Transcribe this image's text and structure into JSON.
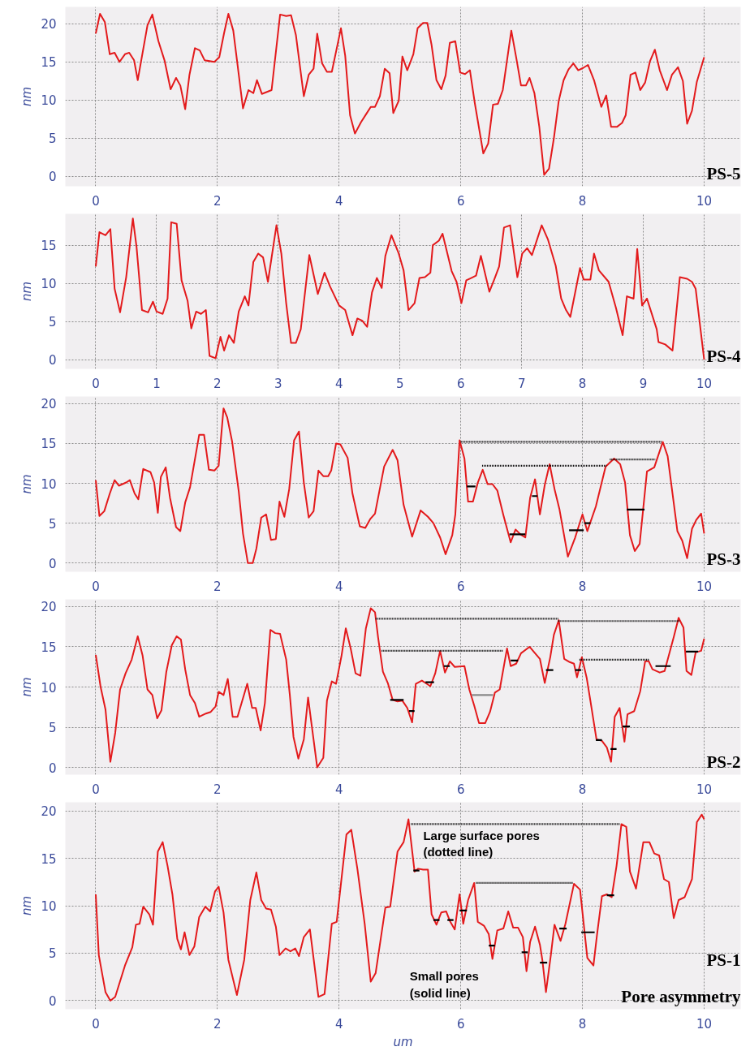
{
  "chart_data": [
    {
      "type": "line",
      "ylabel": "nm",
      "xlim": [
        -0.5,
        10.6
      ],
      "xticks": [
        0,
        2,
        4,
        6,
        8,
        10
      ],
      "ylim": [
        -1.3,
        22.2
      ],
      "yticks": [
        0,
        5,
        10,
        15,
        20
      ],
      "grid": true,
      "marker": "none",
      "annotations": [
        "PS-5"
      ],
      "series": [
        {
          "color": "#e31a1c",
          "line_style": "solid",
          "x": [
            0,
            0.07,
            0.15,
            0.23,
            0.31,
            0.39,
            0.48,
            0.55,
            0.63,
            0.69,
            0.85,
            0.93,
            1.03,
            1.13,
            1.23,
            1.32,
            1.39,
            1.47,
            1.54,
            1.63,
            1.71,
            1.79,
            1.95,
            2.03,
            2.11,
            2.18,
            2.26,
            2.42,
            2.51,
            2.59,
            2.65,
            2.73,
            2.89,
            3.03,
            3.13,
            3.21,
            3.29,
            3.42,
            3.5,
            3.58,
            3.64,
            3.72,
            3.8,
            3.88,
            4.03,
            4.1,
            4.18,
            4.26,
            4.36,
            4.44,
            4.52,
            4.59,
            4.67,
            4.75,
            4.83,
            4.89,
            4.98,
            5.04,
            5.12,
            5.22,
            5.29,
            5.38,
            5.45,
            5.52,
            5.6,
            5.68,
            5.75,
            5.82,
            5.91,
            5.99,
            6.07,
            6.15,
            6.23,
            6.37,
            6.45,
            6.53,
            6.61,
            6.69,
            6.83,
            6.91,
            6.99,
            7.07,
            7.13,
            7.21,
            7.29,
            7.37,
            7.45,
            7.53,
            7.61,
            7.69,
            7.77,
            7.85,
            7.93,
            8.01,
            8.09,
            8.19,
            8.31,
            8.39,
            8.47,
            8.57,
            8.65,
            8.71,
            8.79,
            8.87,
            8.95,
            9.03,
            9.11,
            9.19,
            9.27,
            9.39,
            9.47,
            9.57,
            9.65,
            9.72,
            9.8,
            9.88,
            10
          ],
          "values": [
            18.7,
            21.3,
            20.2,
            16,
            16.2,
            15,
            16,
            16.2,
            15.2,
            12.6,
            19.8,
            21.2,
            17.7,
            15.2,
            11.4,
            12.9,
            11.9,
            8.8,
            13.3,
            16.8,
            16.5,
            15.2,
            15,
            15.6,
            18.8,
            21.3,
            19.1,
            8.9,
            11.3,
            10.9,
            12.6,
            10.8,
            11.3,
            21.2,
            21,
            21.1,
            18.5,
            10.5,
            13.3,
            14.1,
            18.7,
            14.8,
            13.7,
            13.7,
            19.4,
            15.8,
            8,
            5.6,
            7.1,
            8.1,
            9.1,
            9.1,
            10.5,
            14.1,
            13.5,
            8.3,
            9.9,
            15.7,
            13.9,
            16,
            19.4,
            20.1,
            20.1,
            17.2,
            12.6,
            11.4,
            13.2,
            17.5,
            17.7,
            13.6,
            13.4,
            13.9,
            9.6,
            3,
            4.3,
            9.4,
            9.5,
            11.3,
            19.1,
            15.6,
            11.9,
            11.9,
            12.9,
            10.9,
            6.5,
            0.2,
            1,
            5,
            9.9,
            12.6,
            14,
            14.8,
            13.9,
            14.2,
            14.6,
            12.6,
            9.1,
            10.6,
            6.5,
            6.5,
            7,
            8,
            13.3,
            13.6,
            11.3,
            12.3,
            15.1,
            16.6,
            13.9,
            11.3,
            13.3,
            14.3,
            12.5,
            6.9,
            8.6,
            12.4,
            15.6
          ]
        }
      ]
    },
    {
      "type": "line",
      "ylabel": "nm",
      "xlim": [
        -0.5,
        10.6
      ],
      "xticks": [
        0,
        1,
        2,
        3,
        4,
        5,
        6,
        7,
        8,
        9,
        10
      ],
      "ylim": [
        -1.2,
        19.1
      ],
      "yticks": [
        0,
        5,
        10,
        15
      ],
      "grid": true,
      "marker": "none",
      "annotations": [
        "PS-4"
      ],
      "series": [
        {
          "color": "#e31a1c",
          "line_style": "solid",
          "x": [
            0,
            0.06,
            0.16,
            0.24,
            0.31,
            0.4,
            0.5,
            0.61,
            0.67,
            0.76,
            0.86,
            0.94,
            1,
            1.1,
            1.18,
            1.24,
            1.33,
            1.41,
            1.51,
            1.57,
            1.65,
            1.73,
            1.81,
            1.87,
            1.97,
            2.05,
            2.11,
            2.19,
            2.27,
            2.35,
            2.45,
            2.51,
            2.59,
            2.67,
            2.75,
            2.83,
            2.97,
            3.05,
            3.13,
            3.21,
            3.29,
            3.37,
            3.51,
            3.65,
            3.76,
            3.85,
            4,
            4.1,
            4.22,
            4.3,
            4.38,
            4.46,
            4.54,
            4.62,
            4.7,
            4.76,
            4.86,
            4.98,
            5.06,
            5.14,
            5.24,
            5.32,
            5.41,
            5.5,
            5.54,
            5.64,
            5.7,
            5.85,
            5.93,
            6.01,
            6.09,
            6.17,
            6.25,
            6.33,
            6.47,
            6.55,
            6.63,
            6.71,
            6.81,
            6.93,
            7.01,
            7.09,
            7.17,
            7.33,
            7.43,
            7.56,
            7.65,
            7.73,
            7.8,
            7.96,
            8.02,
            8.13,
            8.19,
            8.27,
            8.43,
            8.55,
            8.66,
            8.73,
            8.84,
            8.9,
            8.98,
            9.06,
            9.22,
            9.25,
            9.36,
            9.48,
            9.6,
            9.72,
            9.8,
            9.86,
            10
          ],
          "values": [
            12.2,
            16.7,
            16.3,
            17.1,
            9.3,
            6.2,
            10.8,
            18.5,
            14.8,
            6.5,
            6.2,
            7.6,
            6.3,
            6,
            8,
            18,
            17.8,
            10.4,
            7.7,
            4.1,
            6.3,
            6,
            6.5,
            0.5,
            0.2,
            3,
            1.2,
            3.2,
            2.2,
            6.3,
            8.3,
            7.1,
            12.8,
            13.9,
            13.4,
            10.2,
            17.6,
            13.9,
            7.4,
            2.2,
            2.2,
            4,
            13.7,
            8.6,
            11.4,
            9.6,
            7.1,
            6.5,
            3.2,
            5.4,
            5.1,
            4.3,
            8.8,
            10.7,
            9.4,
            13.6,
            16.3,
            13.9,
            11.7,
            6.5,
            7.4,
            10.7,
            10.8,
            11.4,
            15,
            15.6,
            16.5,
            11.6,
            10.2,
            7.4,
            10.4,
            10.7,
            11,
            13.6,
            8.9,
            10.5,
            12.2,
            17.3,
            17.6,
            10.8,
            13.9,
            14.6,
            13.7,
            17.6,
            15.8,
            12.3,
            8,
            6.5,
            5.6,
            12,
            10.5,
            10.5,
            13.9,
            11.7,
            10.2,
            6.8,
            3.2,
            8.3,
            8,
            14.5,
            7.1,
            8,
            4,
            2.3,
            2,
            1.2,
            10.8,
            10.6,
            10.2,
            9.3,
            0
          ]
        }
      ]
    },
    {
      "type": "line",
      "ylabel": "nm",
      "xlim": [
        -0.5,
        10.6
      ],
      "xticks": [
        0,
        2,
        4,
        6,
        8,
        10
      ],
      "ylim": [
        -1.1,
        20.9
      ],
      "yticks": [
        0,
        5,
        10,
        15,
        20
      ],
      "grid": true,
      "marker": "none",
      "annotations": [
        "PS-3"
      ],
      "series": [
        {
          "color": "#e31a1c",
          "line_style": "solid",
          "x": [
            0,
            0.06,
            0.14,
            0.23,
            0.31,
            0.38,
            0.5,
            0.56,
            0.64,
            0.7,
            0.78,
            0.9,
            0.96,
            1.02,
            1.07,
            1.15,
            1.22,
            1.32,
            1.39,
            1.47,
            1.55,
            1.7,
            1.78,
            1.86,
            1.95,
            2.02,
            2.1,
            2.16,
            2.24,
            2.35,
            2.42,
            2.5,
            2.58,
            2.64,
            2.72,
            2.8,
            2.88,
            2.96,
            3.02,
            3.1,
            3.18,
            3.26,
            3.34,
            3.42,
            3.5,
            3.58,
            3.66,
            3.74,
            3.82,
            3.87,
            3.95,
            4.02,
            4.14,
            4.22,
            4.34,
            4.43,
            4.51,
            4.59,
            4.74,
            4.88,
            4.96,
            5.06,
            5.2,
            5.34,
            5.46,
            5.55,
            5.66,
            5.75,
            5.86,
            5.91,
            5.98,
            6.06,
            6.12,
            6.2,
            6.28,
            6.36,
            6.44,
            6.52,
            6.6,
            6.7,
            6.82,
            6.9,
            6.98,
            7.06,
            7.14,
            7.22,
            7.3,
            7.38,
            7.46,
            7.54,
            7.62,
            7.76,
            7.88,
            8,
            8.08,
            8.22,
            8.38,
            8.52,
            8.62,
            8.7,
            8.78,
            8.86,
            8.94,
            9.06,
            9.18,
            9.32,
            9.4,
            9.56,
            9.64,
            9.72,
            9.8,
            9.87,
            9.95,
            10
          ],
          "values": [
            10.4,
            5.9,
            6.5,
            8.7,
            10.4,
            9.7,
            10.1,
            10.4,
            8.7,
            8,
            11.8,
            11.4,
            10.1,
            6.3,
            10.8,
            12,
            8.2,
            4.5,
            4,
            7.6,
            9.5,
            16.1,
            16.1,
            11.7,
            11.6,
            12.2,
            19.4,
            18.3,
            15.3,
            9,
            3.7,
            0,
            0,
            1.8,
            5.7,
            6.1,
            2.9,
            3,
            7.7,
            5.8,
            9.3,
            15.4,
            16.5,
            10.1,
            5.7,
            6.5,
            11.6,
            10.9,
            10.9,
            11.6,
            15,
            14.9,
            13.2,
            8.7,
            4.6,
            4.4,
            5.5,
            6.2,
            12.1,
            14.2,
            12.9,
            7.3,
            3.3,
            6.6,
            5.8,
            5,
            3.2,
            1.1,
            3.5,
            6.1,
            15.4,
            13.1,
            7.7,
            7.7,
            10.1,
            11.7,
            9.9,
            9.9,
            9.1,
            6,
            2.6,
            4.2,
            3.6,
            3.2,
            8.2,
            10.5,
            6.1,
            9.8,
            12.4,
            9.3,
            6.8,
            0.8,
            3.2,
            6.1,
            4,
            7.1,
            12.1,
            13.1,
            12.4,
            10.1,
            3.5,
            1.5,
            2.4,
            11.5,
            12,
            15.2,
            13.4,
            4,
            2.8,
            0.6,
            4.3,
            5.4,
            6.2,
            3.7
          ]
        },
        {
          "color": "#000000",
          "line_style": "dotted",
          "x": [
            6.0,
            9.3
          ],
          "values": [
            15.2,
            15.2
          ]
        },
        {
          "color": "#000000",
          "line_style": "dotted",
          "x": [
            6.35,
            8.4
          ],
          "values": [
            12.2,
            12.2
          ]
        },
        {
          "color": "#000000",
          "line_style": "dotted",
          "x": [
            8.45,
            9.2
          ],
          "values": [
            13,
            13
          ]
        },
        {
          "color": "#000000",
          "line_style": "solid",
          "x": [
            6.1,
            6.24
          ],
          "values": [
            9.6,
            9.6
          ]
        },
        {
          "color": "#000000",
          "line_style": "solid",
          "x": [
            6.8,
            7.06
          ],
          "values": [
            3.6,
            3.6
          ]
        },
        {
          "color": "#000000",
          "line_style": "solid",
          "x": [
            7.17,
            7.26
          ],
          "values": [
            8.4,
            8.4
          ]
        },
        {
          "color": "#000000",
          "line_style": "solid",
          "x": [
            7.78,
            8.02
          ],
          "values": [
            4.1,
            4.1
          ]
        },
        {
          "color": "#000000",
          "line_style": "solid",
          "x": [
            8.03,
            8.13
          ],
          "values": [
            5,
            5
          ]
        },
        {
          "color": "#000000",
          "line_style": "solid",
          "x": [
            8.73,
            9.02
          ],
          "values": [
            6.7,
            6.7
          ]
        }
      ]
    },
    {
      "type": "line",
      "ylabel": "nm",
      "xlim": [
        -0.5,
        10.6
      ],
      "xticks": [
        0,
        2,
        4,
        6,
        8,
        10
      ],
      "ylim": [
        -0.9,
        20.9
      ],
      "yticks": [
        0,
        5,
        10,
        15,
        20
      ],
      "grid": true,
      "marker": "none",
      "annotations": [
        "PS-2"
      ],
      "series": [
        {
          "color": "#e31a1c",
          "line_style": "solid",
          "x": [
            0,
            0.08,
            0.16,
            0.24,
            0.32,
            0.4,
            0.49,
            0.59,
            0.69,
            0.77,
            0.85,
            0.93,
            1.01,
            1.08,
            1.16,
            1.25,
            1.33,
            1.4,
            1.47,
            1.55,
            1.63,
            1.7,
            1.81,
            1.89,
            1.97,
            2.02,
            2.1,
            2.17,
            2.25,
            2.33,
            2.49,
            2.57,
            2.63,
            2.71,
            2.78,
            2.87,
            2.95,
            3.03,
            3.13,
            3.19,
            3.25,
            3.33,
            3.42,
            3.49,
            3.55,
            3.64,
            3.74,
            3.8,
            3.88,
            3.95,
            4.04,
            4.11,
            4.19,
            4.27,
            4.35,
            4.44,
            4.52,
            4.59,
            4.64,
            4.72,
            4.8,
            4.88,
            4.96,
            5.04,
            5.12,
            5.2,
            5.26,
            5.36,
            5.44,
            5.5,
            5.58,
            5.66,
            5.74,
            5.82,
            5.9,
            6.06,
            6.14,
            6.22,
            6.3,
            6.4,
            6.48,
            6.56,
            6.64,
            6.76,
            6.82,
            6.91,
            6.99,
            7.13,
            7.22,
            7.3,
            7.38,
            7.47,
            7.53,
            7.61,
            7.7,
            7.79,
            7.86,
            7.91,
            7.99,
            8.07,
            8.13,
            8.23,
            8.32,
            8.4,
            8.47,
            8.53,
            8.61,
            8.69,
            8.74,
            8.85,
            8.95,
            9.03,
            9.09,
            9.15,
            9.27,
            9.35,
            9.5,
            9.58,
            9.66,
            9.71,
            9.79,
            9.86,
            9.95,
            10
          ],
          "values": [
            14,
            10,
            7.2,
            0.7,
            4.3,
            9.7,
            11.7,
            13.4,
            16.3,
            13.9,
            9.7,
            9,
            6.1,
            7.1,
            11.9,
            15.2,
            16.3,
            15.9,
            12.2,
            9,
            8,
            6.3,
            6.7,
            6.9,
            7.6,
            9.4,
            9,
            11,
            6.3,
            6.3,
            10.4,
            7.4,
            7.4,
            4.6,
            8,
            17.1,
            16.7,
            16.6,
            13.4,
            9,
            3.8,
            1.1,
            3.5,
            8.7,
            5.2,
            0,
            1.2,
            8.3,
            10.7,
            10.4,
            13.9,
            17.3,
            14.8,
            11.7,
            11.4,
            17.3,
            19.8,
            19.3,
            16.2,
            11.9,
            10.5,
            8.4,
            8.2,
            8.3,
            7.4,
            5.6,
            10.4,
            10.8,
            10.4,
            10.1,
            11.7,
            14.5,
            11.8,
            13.2,
            12.5,
            12.6,
            9.7,
            7.7,
            5.5,
            5.5,
            6.9,
            9.3,
            9.7,
            14.8,
            12.6,
            12.9,
            14.2,
            15,
            14.2,
            13.5,
            10.5,
            13.7,
            16.5,
            18.3,
            13.5,
            13.1,
            12.9,
            11.2,
            13.7,
            11.1,
            8.3,
            3.5,
            3.3,
            2.5,
            0.7,
            6.3,
            7.4,
            3.2,
            6.6,
            7,
            9.5,
            13.2,
            13.2,
            12.2,
            11.8,
            12,
            16.2,
            18.6,
            17.4,
            12,
            11.5,
            14.3,
            14.5,
            16
          ]
        },
        {
          "color": "#000000",
          "line_style": "dotted",
          "x": [
            4.6,
            7.6
          ],
          "values": [
            18.5,
            18.5
          ]
        },
        {
          "color": "#000000",
          "line_style": "dotted",
          "x": [
            7.6,
            9.6
          ],
          "values": [
            18.2,
            18.2
          ]
        },
        {
          "color": "#000000",
          "line_style": "dotted",
          "x": [
            4.7,
            6.7
          ],
          "values": [
            14.5,
            14.5
          ]
        },
        {
          "color": "#000000",
          "line_style": "dotted",
          "x": [
            7.95,
            9.1
          ],
          "values": [
            13.4,
            13.4
          ]
        },
        {
          "color": "#000000",
          "line_style": "solid",
          "x": [
            4.84,
            5.06
          ],
          "values": [
            8.4,
            8.4
          ]
        },
        {
          "color": "#000000",
          "line_style": "solid",
          "x": [
            5.15,
            5.24
          ],
          "values": [
            7,
            7
          ]
        },
        {
          "color": "#000000",
          "line_style": "solid",
          "x": [
            5.42,
            5.56
          ],
          "values": [
            10.6,
            10.6
          ]
        },
        {
          "color": "#000000",
          "line_style": "solid",
          "x": [
            5.72,
            5.82
          ],
          "values": [
            12.6,
            12.6
          ]
        },
        {
          "color": "#888888",
          "line_style": "solid",
          "x": [
            6.18,
            6.53
          ],
          "values": [
            9,
            9
          ]
        },
        {
          "color": "#000000",
          "line_style": "solid",
          "x": [
            6.82,
            6.94
          ],
          "values": [
            13.3,
            13.3
          ]
        },
        {
          "color": "#000000",
          "line_style": "solid",
          "x": [
            7.4,
            7.52
          ],
          "values": [
            12.1,
            12.1
          ]
        },
        {
          "color": "#000000",
          "line_style": "solid",
          "x": [
            7.88,
            7.98
          ],
          "values": [
            12.1,
            12.1
          ]
        },
        {
          "color": "#000000",
          "line_style": "solid",
          "x": [
            8.22,
            8.32
          ],
          "values": [
            3.4,
            3.4
          ]
        },
        {
          "color": "#000000",
          "line_style": "solid",
          "x": [
            8.46,
            8.56
          ],
          "values": [
            2.3,
            2.3
          ]
        },
        {
          "color": "#000000",
          "line_style": "solid",
          "x": [
            8.66,
            8.78
          ],
          "values": [
            5.1,
            5.1
          ]
        },
        {
          "color": "#000000",
          "line_style": "solid",
          "x": [
            9.2,
            9.45
          ],
          "values": [
            12.6,
            12.6
          ]
        },
        {
          "color": "#000000",
          "line_style": "solid",
          "x": [
            9.7,
            9.9
          ],
          "values": [
            14.4,
            14.4
          ]
        }
      ]
    },
    {
      "type": "line",
      "ylabel": "nm",
      "xlabel": "um",
      "xlim": [
        -0.5,
        10.6
      ],
      "xticks": [
        0,
        2,
        4,
        6,
        8,
        10
      ],
      "ylim": [
        -0.9,
        20.9
      ],
      "yticks": [
        0,
        5,
        10,
        15,
        20
      ],
      "grid": true,
      "marker": "none",
      "annotations": [
        "PS-1",
        "Pore asymmetry",
        "Large surface pores\n(dotted line)",
        "Small pores\n(solid line)"
      ],
      "series": [
        {
          "color": "#e31a1c",
          "line_style": "solid",
          "x": [
            0,
            0.05,
            0.16,
            0.24,
            0.32,
            0.48,
            0.6,
            0.66,
            0.72,
            0.78,
            0.88,
            0.94,
            1.02,
            1.1,
            1.18,
            1.26,
            1.34,
            1.4,
            1.46,
            1.54,
            1.62,
            1.7,
            1.8,
            1.88,
            1.96,
            2.02,
            2.1,
            2.18,
            2.32,
            2.44,
            2.54,
            2.64,
            2.72,
            2.8,
            2.88,
            2.96,
            3.02,
            3.12,
            3.2,
            3.28,
            3.34,
            3.42,
            3.52,
            3.66,
            3.76,
            3.88,
            3.96,
            4.12,
            4.2,
            4.3,
            4.42,
            4.52,
            4.6,
            4.76,
            4.84,
            4.96,
            5.06,
            5.14,
            5.24,
            5.3,
            5.38,
            5.46,
            5.52,
            5.6,
            5.68,
            5.76,
            5.82,
            5.9,
            5.98,
            6.04,
            6.12,
            6.22,
            6.28,
            6.38,
            6.46,
            6.52,
            6.6,
            6.7,
            6.78,
            6.86,
            6.94,
            7.02,
            7.08,
            7.14,
            7.22,
            7.3,
            7.34,
            7.4,
            7.48,
            7.54,
            7.64,
            7.72,
            7.86,
            7.96,
            8.08,
            8.18,
            8.24,
            8.32,
            8.4,
            8.48,
            8.56,
            8.64,
            8.72,
            8.78,
            8.88,
            9,
            9.1,
            9.18,
            9.26,
            9.34,
            9.42,
            9.5,
            9.58,
            9.68,
            9.8,
            9.88,
            9.96,
            10
          ],
          "values": [
            11.2,
            4.8,
            0.9,
            0,
            0.4,
            3.7,
            5.6,
            8,
            8.1,
            9.9,
            9.1,
            8,
            15.7,
            16.7,
            14.2,
            11.2,
            6.5,
            5.4,
            7.2,
            4.8,
            5.7,
            8.8,
            9.9,
            9.4,
            11.5,
            12,
            9.3,
            4.3,
            0.6,
            4.3,
            10.6,
            13.5,
            10.6,
            9.7,
            9.6,
            7.8,
            4.8,
            5.5,
            5.2,
            5.5,
            4.7,
            6.7,
            7.5,
            0.4,
            0.7,
            8.1,
            8.3,
            17.5,
            18,
            13.9,
            8.1,
            2,
            2.9,
            9.8,
            9.9,
            15.7,
            16.7,
            19.1,
            13.6,
            13.9,
            13.8,
            13.8,
            9.1,
            8,
            9.3,
            9.4,
            8.4,
            7.5,
            11.2,
            8.1,
            10.6,
            12.4,
            8.3,
            7.9,
            7,
            4.4,
            7.4,
            7.6,
            9.4,
            7.7,
            7.7,
            6.7,
            3.1,
            6.2,
            7.8,
            5.9,
            4.3,
            0.9,
            4.8,
            8,
            6.3,
            8.1,
            12.3,
            11.7,
            4.5,
            3.7,
            7,
            11,
            11.2,
            10.9,
            14.2,
            18.6,
            18.3,
            13.6,
            11.8,
            16.7,
            16.7,
            15.5,
            15.3,
            12.8,
            12.5,
            8.7,
            10.6,
            10.9,
            12.8,
            18.8,
            19.6,
            19.1
          ]
        },
        {
          "color": "#000000",
          "line_style": "dotted",
          "x": [
            5.18,
            8.62
          ],
          "values": [
            18.6,
            18.6
          ]
        },
        {
          "color": "#000000",
          "line_style": "dotted",
          "x": [
            6.25,
            7.85
          ],
          "values": [
            12.4,
            12.4
          ]
        },
        {
          "color": "#000000",
          "line_style": "solid",
          "x": [
            5.22,
            5.32
          ],
          "values": [
            13.7,
            13.7
          ]
        },
        {
          "color": "#000000",
          "line_style": "solid",
          "x": [
            5.55,
            5.65
          ],
          "values": [
            8.5,
            8.5
          ]
        },
        {
          "color": "#000000",
          "line_style": "solid",
          "x": [
            5.78,
            5.88
          ],
          "values": [
            8.5,
            8.5
          ]
        },
        {
          "color": "#000000",
          "line_style": "solid",
          "x": [
            5.98,
            6.1
          ],
          "values": [
            9.5,
            9.5
          ]
        },
        {
          "color": "#000000",
          "line_style": "solid",
          "x": [
            6.46,
            6.56
          ],
          "values": [
            5.8,
            5.8
          ]
        },
        {
          "color": "#000000",
          "line_style": "solid",
          "x": [
            7.0,
            7.1
          ],
          "values": [
            5.1,
            5.1
          ]
        },
        {
          "color": "#000000",
          "line_style": "solid",
          "x": [
            7.3,
            7.42
          ],
          "values": [
            4,
            4
          ]
        },
        {
          "color": "#000000",
          "line_style": "solid",
          "x": [
            7.62,
            7.74
          ],
          "values": [
            7.6,
            7.6
          ]
        },
        {
          "color": "#000000",
          "line_style": "solid",
          "x": [
            7.98,
            8.2
          ],
          "values": [
            7.2,
            7.2
          ]
        },
        {
          "color": "#000000",
          "line_style": "solid",
          "x": [
            8.4,
            8.52
          ],
          "values": [
            11.1,
            11.1
          ]
        }
      ]
    }
  ]
}
